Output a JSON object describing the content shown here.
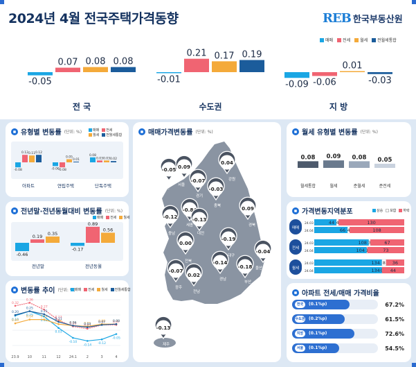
{
  "header": {
    "title": "2024년 4월 전국주택가격동향",
    "logo_mark": "REB",
    "logo_name": "한국부동산원"
  },
  "legend": [
    {
      "label": "매매",
      "color": "#1aa6e4"
    },
    {
      "label": "전세",
      "color": "#f06472"
    },
    {
      "label": "월세",
      "color": "#f4aa3a"
    },
    {
      "label": "전월세통합",
      "color": "#1b5c9b"
    }
  ],
  "colors": {
    "sale": "#1aa6e4",
    "jeonse": "#f06472",
    "wolse": "#f4aa3a",
    "total": "#1b5c9b",
    "navy": "#14325f",
    "accent": "#1d6fd6"
  },
  "chart_data": [
    {
      "type": "bar",
      "name": "regions",
      "categories": [
        "전 국",
        "수도권",
        "지 방"
      ],
      "series": [
        {
          "name": "매매",
          "values": [
            -0.05,
            -0.01,
            -0.09
          ]
        },
        {
          "name": "전세",
          "values": [
            0.07,
            0.21,
            -0.06
          ]
        },
        {
          "name": "월세",
          "values": [
            0.08,
            0.17,
            0.01
          ]
        },
        {
          "name": "전월세통합",
          "values": [
            0.08,
            0.19,
            -0.03
          ]
        }
      ]
    },
    {
      "type": "bar",
      "name": "housing_type",
      "title": "유형별 변동률",
      "unit": "(단위: %)",
      "categories": [
        "아파트",
        "연립주택",
        "단독주택"
      ],
      "series": [
        {
          "name": "매매",
          "values": [
            -0.08,
            -0.06,
            0.08
          ]
        },
        {
          "name": "전세",
          "values": [
            0.12,
            -0.08,
            0.03
          ]
        },
        {
          "name": "월세",
          "values": [
            0.11,
            0.05,
            0.03
          ]
        },
        {
          "name": "전월세통합",
          "values": [
            0.12,
            0.01,
            0.02
          ]
        }
      ]
    },
    {
      "type": "bar",
      "name": "cumulative",
      "title": "전년말·전년동월대비 변동률",
      "unit": "(단위: %)",
      "categories": [
        "전년말",
        "전년동월"
      ],
      "series": [
        {
          "name": "매매",
          "values": [
            -0.46,
            -0.17
          ]
        },
        {
          "name": "전세",
          "values": [
            0.19,
            0.89
          ]
        },
        {
          "name": "월세",
          "values": [
            0.35,
            0.56
          ]
        }
      ]
    },
    {
      "type": "line",
      "name": "trend",
      "title": "변동률 추이",
      "unit": "(단위: %)",
      "x": [
        "23.9",
        "10",
        "11",
        "12",
        "24.1",
        "2",
        "3",
        "4"
      ],
      "series": [
        {
          "name": "매매",
          "values": [
            0.19,
            0.25,
            0.18,
            0.03,
            -0.1,
            -0.14,
            -0.12,
            -0.05
          ]
        },
        {
          "name": "전세",
          "values": [
            0.32,
            0.36,
            0.27,
            0.13,
            0.05,
            0.02,
            0.07,
            0.07
          ]
        },
        {
          "name": "월세",
          "values": [
            0.09,
            0.14,
            0.14,
            0.08,
            0.06,
            0.05,
            0.08,
            0.08
          ]
        },
        {
          "name": "전월세통합",
          "values": [
            0.2,
            0.25,
            0.21,
            0.11,
            0.06,
            0.04,
            0.07,
            0.08
          ]
        }
      ]
    },
    {
      "type": "bar",
      "name": "wolse_type",
      "title": "월세 유형별 변동률",
      "unit": "(단위: %)",
      "categories": [
        "월세통합",
        "월세",
        "준월세",
        "준전세"
      ],
      "values": [
        0.08,
        0.09,
        0.08,
        0.05
      ]
    }
  ],
  "map": {
    "title": "매매가격변동률",
    "unit": "(단위: %)",
    "regions": [
      {
        "name": "인천",
        "value": "-0.05"
      },
      {
        "name": "서울",
        "value": "0.09"
      },
      {
        "name": "강원",
        "value": "0.04"
      },
      {
        "name": "경기",
        "value": "-0.07"
      },
      {
        "name": "충북",
        "value": "-0.03"
      },
      {
        "name": "세종",
        "value": "-0.84"
      },
      {
        "name": "충남",
        "value": "-0.12"
      },
      {
        "name": "대전",
        "value": "-0.13"
      },
      {
        "name": "경북",
        "value": "0.09"
      },
      {
        "name": "대구",
        "value": "-0.19"
      },
      {
        "name": "전북",
        "value": "0.00"
      },
      {
        "name": "울산",
        "value": "-0.04"
      },
      {
        "name": "경남",
        "value": "-0.14"
      },
      {
        "name": "부산",
        "value": "-0.18"
      },
      {
        "name": "광주",
        "value": "-0.07"
      },
      {
        "name": "전남",
        "value": "0.02"
      },
      {
        "name": "제주",
        "value": "-0.13"
      }
    ]
  },
  "distribution": {
    "title": "가격변동지역분포",
    "legend": [
      "상승",
      "보합",
      "하락"
    ],
    "legend_colors": [
      "#1aa6e4",
      "#ffffff",
      "#f06472"
    ],
    "groups": [
      {
        "label": "매매",
        "rows": [
          {
            "period": "24.03",
            "values": [
              44,
              4,
              130
            ]
          },
          {
            "period": "24.04",
            "values": [
              66,
              4,
              108
            ]
          }
        ]
      },
      {
        "label": "전세",
        "rows": [
          {
            "period": "24.03",
            "values": [
              108,
              3,
              67
            ]
          },
          {
            "period": "24.04",
            "values": [
              104,
              1,
              73
            ]
          }
        ]
      },
      {
        "label": "월세",
        "rows": [
          {
            "period": "24.03",
            "values": [
              134,
              8,
              36
            ]
          },
          {
            "period": "24.04",
            "values": [
              134,
              0,
              44
            ]
          }
        ]
      }
    ]
  },
  "ratio": {
    "title": "아파트 전세/매매 가격비율",
    "rows": [
      {
        "region": "전국",
        "change": "(0.1%p)",
        "value": "67.2%",
        "fraction": 0.672
      },
      {
        "region": "수도권",
        "change": "(0.2%p)",
        "value": "61.5%",
        "fraction": 0.615
      },
      {
        "region": "지방",
        "change": "(0.1%p)",
        "value": "72.6%",
        "fraction": 0.726
      },
      {
        "region": "서울",
        "change": "(0.1%p)",
        "value": "54.5%",
        "fraction": 0.545
      }
    ]
  }
}
